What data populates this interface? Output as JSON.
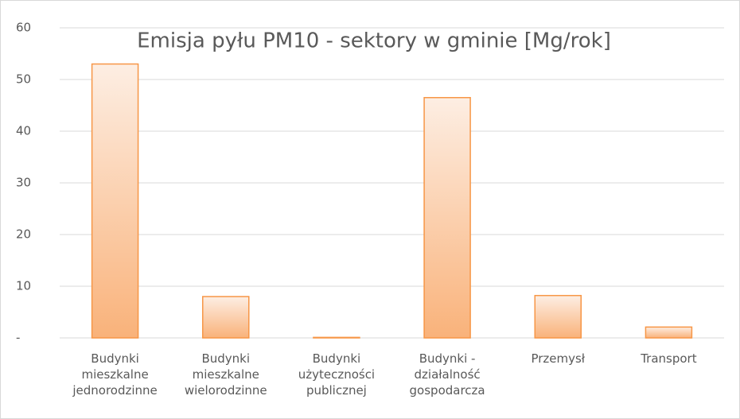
{
  "chart_data": {
    "type": "bar",
    "title": "Emisja pyłu PM10 - sektory w gminie [Mg/rok]",
    "categories": [
      "Budynki mieszkalne jednorodzinne",
      "Budynki mieszkalne wielorodzinne",
      "Budynki użyteczności publicznej",
      "Budynki - działalność gospodarcza",
      "Przemysł",
      "Transport"
    ],
    "values": [
      53,
      8,
      0.1,
      46.5,
      8.2,
      2.1
    ],
    "color": "#f79646",
    "ylim": [
      0,
      60
    ],
    "yticks": [
      {
        "value": 0,
        "label": "-"
      },
      10,
      20,
      30,
      40,
      50,
      60
    ],
    "grid": true
  }
}
